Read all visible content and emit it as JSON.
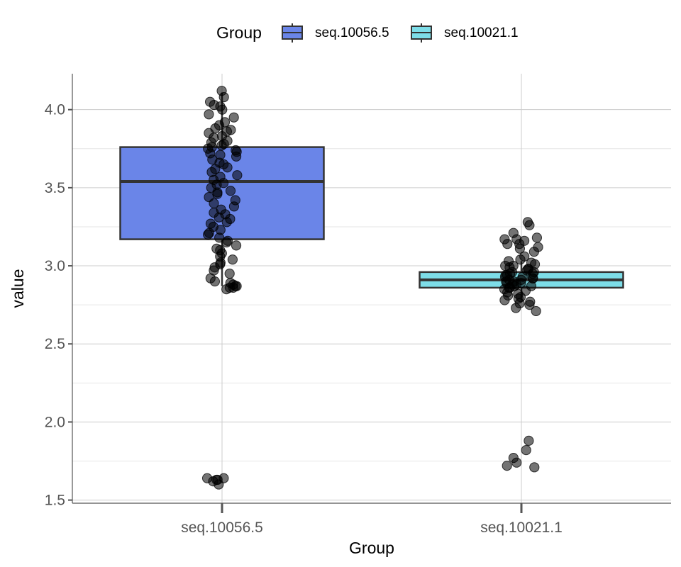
{
  "chart_data": {
    "type": "boxplot",
    "xlabel": "Group",
    "ylabel": "value",
    "ylim": [
      1.48,
      4.23
    ],
    "y_ticks": [
      1.5,
      2.0,
      2.5,
      3.0,
      3.5,
      4.0
    ],
    "y_tick_labels": [
      "1.5",
      "2.0",
      "2.5",
      "3.0",
      "3.5",
      "4.0"
    ],
    "grid": true,
    "legend": {
      "title": "Group",
      "position": "top"
    },
    "categories": [
      "seq.10056.5",
      "seq.10021.1"
    ],
    "series": [
      {
        "name": "seq.10056.5",
        "color": "#6A85E8",
        "box": {
          "q1": 3.17,
          "median": 3.54,
          "q3": 3.76,
          "whisker_low": 2.87,
          "whisker_high": 4.11
        },
        "points": [
          4.12,
          4.08,
          4.05,
          4.03,
          4.02,
          4.0,
          3.97,
          3.95,
          3.92,
          3.9,
          3.88,
          3.87,
          3.86,
          3.85,
          3.83,
          3.82,
          3.8,
          3.79,
          3.78,
          3.77,
          3.76,
          3.75,
          3.74,
          3.73,
          3.72,
          3.71,
          3.7,
          3.68,
          3.66,
          3.65,
          3.63,
          3.62,
          3.6,
          3.58,
          3.57,
          3.55,
          3.53,
          3.52,
          3.5,
          3.48,
          3.47,
          3.46,
          3.44,
          3.42,
          3.4,
          3.38,
          3.36,
          3.34,
          3.33,
          3.31,
          3.3,
          3.28,
          3.27,
          3.25,
          3.23,
          3.21,
          3.2,
          3.18,
          3.16,
          3.15,
          3.13,
          3.11,
          3.1,
          3.08,
          3.06,
          3.04,
          3.02,
          3.01,
          2.99,
          2.97,
          2.95,
          2.92,
          2.9,
          2.89,
          2.88,
          2.87,
          2.87,
          2.86,
          2.86,
          2.85,
          1.64,
          1.64,
          1.63,
          1.63,
          1.62,
          1.6
        ]
      },
      {
        "name": "seq.10021.1",
        "color": "#7DDDE8",
        "box": {
          "q1": 2.86,
          "median": 2.91,
          "q3": 2.96,
          "whisker_low": 2.78,
          "whisker_high": 3.03
        },
        "points": [
          3.28,
          3.26,
          3.21,
          3.18,
          3.17,
          3.17,
          3.16,
          3.14,
          3.14,
          3.12,
          3.11,
          3.09,
          3.06,
          3.04,
          3.03,
          3.02,
          3.01,
          3.0,
          3.0,
          2.99,
          2.98,
          2.98,
          2.97,
          2.96,
          2.96,
          2.95,
          2.95,
          2.94,
          2.94,
          2.93,
          2.93,
          2.92,
          2.92,
          2.91,
          2.91,
          2.9,
          2.9,
          2.89,
          2.89,
          2.88,
          2.88,
          2.87,
          2.87,
          2.86,
          2.86,
          2.85,
          2.84,
          2.83,
          2.82,
          2.81,
          2.8,
          2.79,
          2.78,
          2.77,
          2.76,
          2.75,
          2.73,
          2.71,
          1.88,
          1.82,
          1.77,
          1.74,
          1.72,
          1.71
        ]
      }
    ]
  }
}
